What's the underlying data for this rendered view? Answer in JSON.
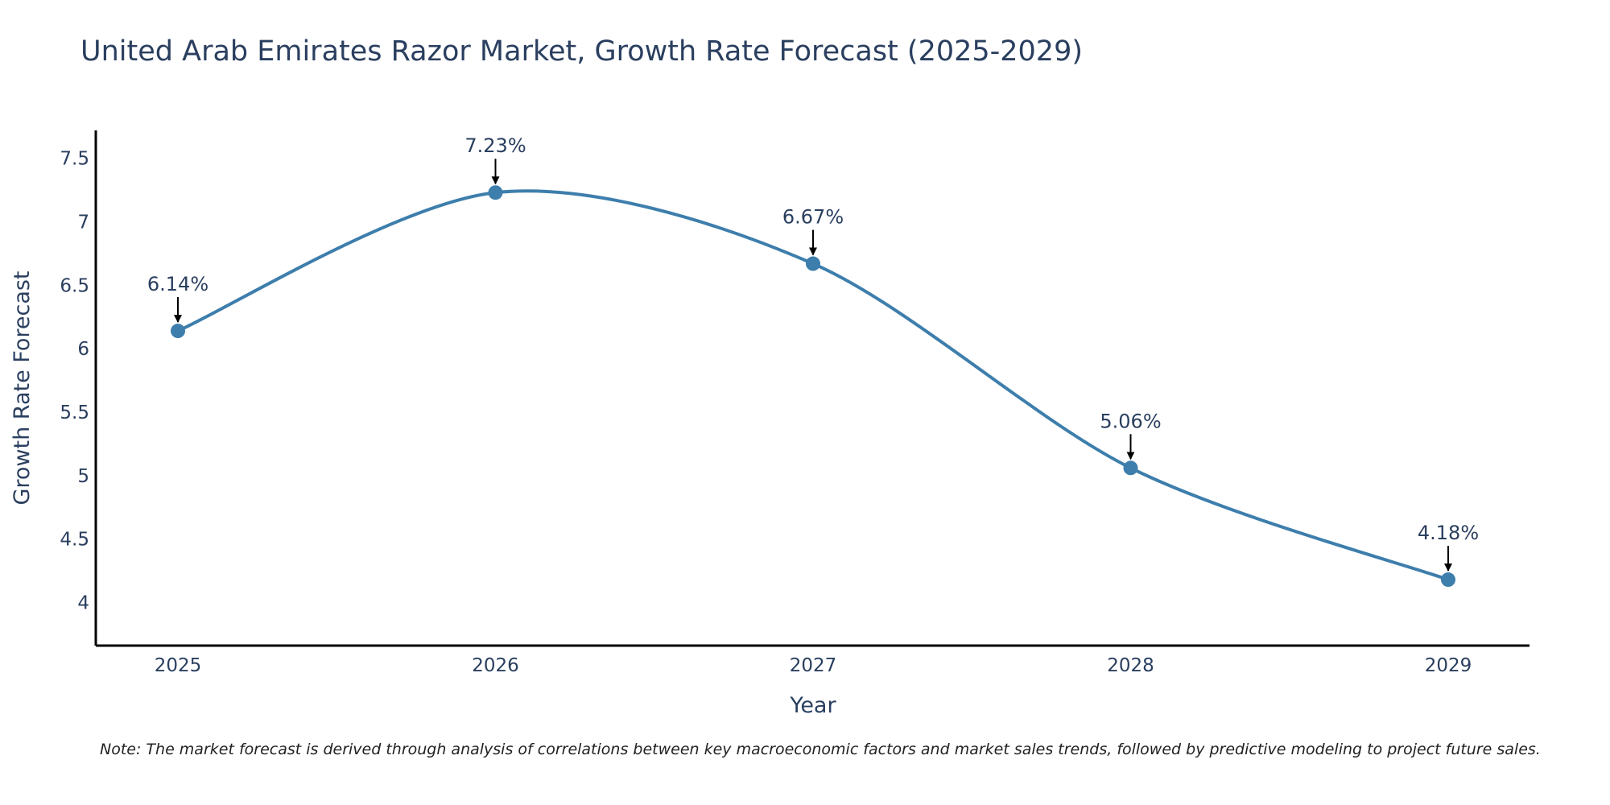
{
  "chart_data": {
    "type": "line",
    "title": "United Arab Emirates Razor Market, Growth Rate Forecast (2025-2029)",
    "xlabel": "Year",
    "ylabel": "Growth Rate Forecast",
    "categories": [
      "2025",
      "2026",
      "2027",
      "2028",
      "2029"
    ],
    "values": [
      6.14,
      7.23,
      6.67,
      5.06,
      4.18
    ],
    "data_labels": [
      "6.14%",
      "7.23%",
      "6.67%",
      "5.06%",
      "4.18%"
    ],
    "y_ticks": [
      "4",
      "4.5",
      "5",
      "5.5",
      "6",
      "6.5",
      "7",
      "7.5"
    ],
    "ylim": [
      3.66,
      7.72
    ],
    "grid": false,
    "line_shape": "spline",
    "line_color": "#3d7eac",
    "marker_color": "#3d7eac",
    "arrow_color": "#000000",
    "note": "Note: The market forecast is derived through analysis of correlations between key macroeconomic factors and market sales trends, followed by predictive modeling to project future sales."
  }
}
